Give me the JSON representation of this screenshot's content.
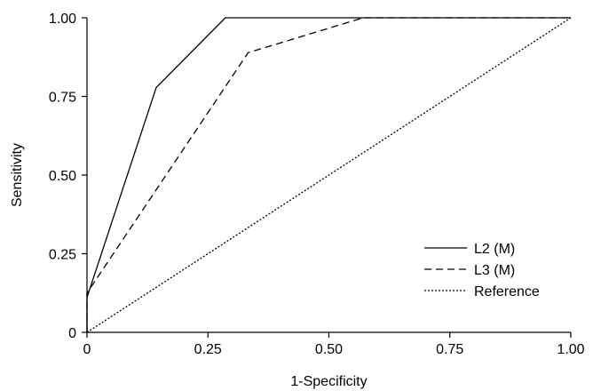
{
  "chart_data": {
    "type": "line",
    "xlabel": "1-Specificity",
    "ylabel": "Sensitivity",
    "xlim": [
      0,
      1
    ],
    "ylim": [
      0,
      1
    ],
    "xticks": [
      "0",
      "0.25",
      "0.50",
      "0.75",
      "1.00"
    ],
    "xtick_values": [
      0,
      0.25,
      0.5,
      0.75,
      1.0
    ],
    "yticks": [
      "0",
      "0.25",
      "0.50",
      "0.75",
      "1.00"
    ],
    "ytick_values": [
      0,
      0.25,
      0.5,
      0.75,
      1.0
    ],
    "grid": false,
    "legend_position": "bottom-right",
    "series": [
      {
        "name": "L2 (M)",
        "style": "solid",
        "color": "#000000",
        "x": [
          0,
          0,
          0.143,
          0.286,
          1.0
        ],
        "y": [
          0,
          0.111,
          0.778,
          1.0,
          1.0
        ]
      },
      {
        "name": "L3 (M)",
        "style": "dashed",
        "color": "#000000",
        "x": [
          0,
          0,
          0.333,
          0.571,
          1.0
        ],
        "y": [
          0,
          0.125,
          0.889,
          1.0,
          1.0
        ]
      },
      {
        "name": "Reference",
        "style": "dotted",
        "color": "#000000",
        "x": [
          0,
          1.0
        ],
        "y": [
          0,
          1.0
        ]
      }
    ]
  }
}
